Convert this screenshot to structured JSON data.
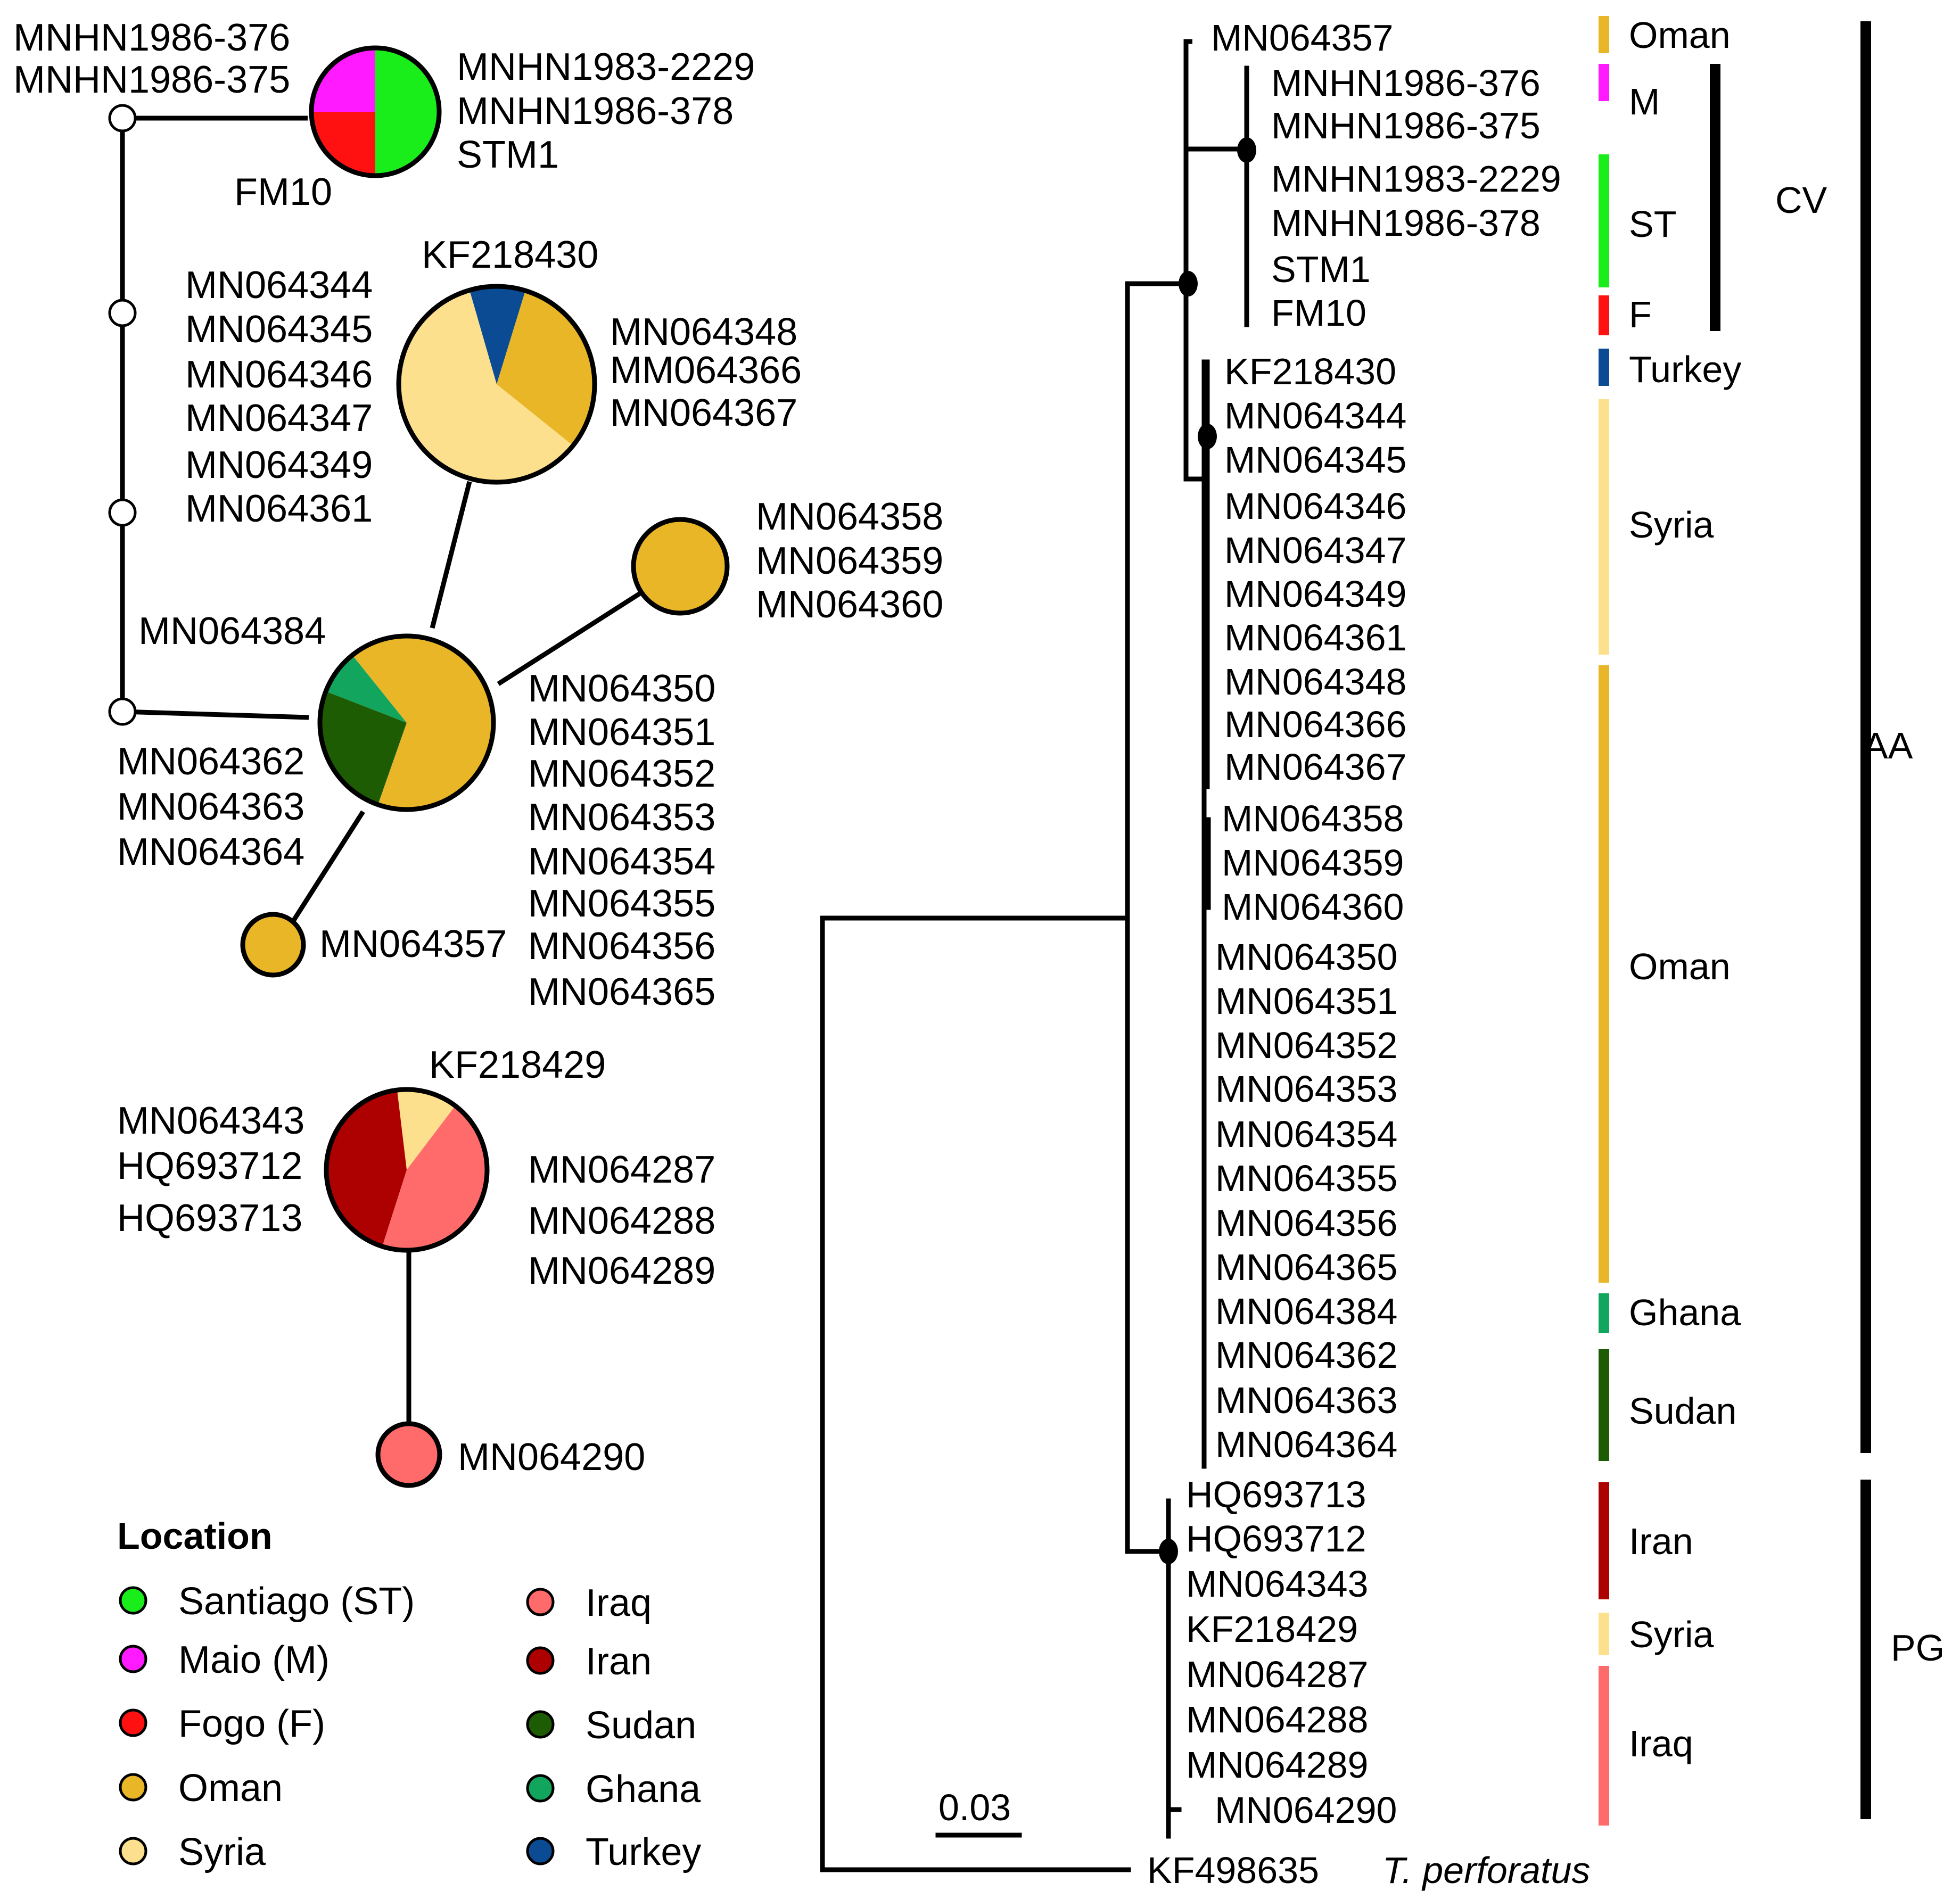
{
  "haplotype_network": {
    "legend_title": "Location",
    "legend": [
      {
        "label": "Santiago (ST)",
        "color": "#1aee1a"
      },
      {
        "label": "Maio (M)",
        "color": "#ff1aff"
      },
      {
        "label": "Fogo (F)",
        "color": "#ff1111"
      },
      {
        "label": "Oman",
        "color": "#e8b626"
      },
      {
        "label": "Syria",
        "color": "#fde08e"
      },
      {
        "label": "Iraq",
        "color": "#ff6b6b"
      },
      {
        "label": "Iran",
        "color": "#ad0000"
      },
      {
        "label": "Sudan",
        "color": "#1e5c04"
      },
      {
        "label": "Ghana",
        "color": "#11a55d"
      },
      {
        "label": "Turkey",
        "color": "#0b4b93"
      }
    ],
    "nodes": {
      "cv": {
        "labels_left": [
          "MNHN1986-376",
          "MNHN1986-375"
        ],
        "labels_right": [
          "MNHN1983-2229",
          "MNHN1986-378",
          "STM1"
        ],
        "label_bottom": "FM10"
      },
      "syria": {
        "label_top": "KF218430",
        "labels_left": [
          "MN064344",
          "MN064345",
          "MN064346",
          "MN064347",
          "MN064349",
          "MN064361"
        ],
        "labels_right": [
          "MN064348",
          "MM064366",
          "MN064367"
        ]
      },
      "oman_small": {
        "labels": [
          "MN064358",
          "MN064359",
          "MN064360"
        ]
      },
      "oman_main": {
        "label_top": "MN064384",
        "labels_left": [
          "MN064362",
          "MN064363",
          "MN064364"
        ],
        "labels_right": [
          "MN064350",
          "MN064351",
          "MN064352",
          "MN064353",
          "MN064354",
          "MN064355",
          "MN064356",
          "MN064365"
        ]
      },
      "oman_tiny": {
        "label": "MN064357"
      },
      "pg_main": {
        "label_top": "KF218429",
        "labels_left": [
          "MN064343",
          "HQ693712",
          "HQ693713"
        ],
        "labels_right": [
          "MN064287",
          "MN064288",
          "MN064289"
        ]
      },
      "iraq_small": {
        "label": "MN064290"
      }
    }
  },
  "phylogenetic_tree": {
    "scale_bar": "0.03",
    "outgroup": {
      "accession": "KF498635",
      "species": "T. perforatus"
    },
    "tips": [
      "MN064357",
      "MNHN1986-376",
      "MNHN1986-375",
      "MNHN1983-2229",
      "MNHN1986-378",
      "STM1",
      "FM10",
      "KF218430",
      "MN064344",
      "MN064345",
      "MN064346",
      "MN064347",
      "MN064349",
      "MN064361",
      "MN064348",
      "MN064366",
      "MN064367",
      "MN064358",
      "MN064359",
      "MN064360",
      "MN064350",
      "MN064351",
      "MN064352",
      "MN064353",
      "MN064354",
      "MN064355",
      "MN064356",
      "MN064365",
      "MN064384",
      "MN064362",
      "MN064363",
      "MN064364",
      "HQ693713",
      "HQ693712",
      "MN064343",
      "KF218429",
      "MN064287",
      "MN064288",
      "MN064289",
      "MN064290"
    ],
    "location_bars": [
      {
        "label": "Oman",
        "color": "#e8b626"
      },
      {
        "label": "M",
        "color": "#ff1aff"
      },
      {
        "label": "ST",
        "color": "#1aee1a"
      },
      {
        "label": "F",
        "color": "#ff1111"
      },
      {
        "label": "Turkey",
        "color": "#0b4b93"
      },
      {
        "label": "Syria",
        "color": "#fde08e"
      },
      {
        "label": "Oman",
        "color": "#e8b626"
      },
      {
        "label": "Ghana",
        "color": "#11a55d"
      },
      {
        "label": "Sudan",
        "color": "#1e5c04"
      },
      {
        "label": "Iran",
        "color": "#ad0000"
      },
      {
        "label": "Syria",
        "color": "#fde08e"
      },
      {
        "label": "Iraq",
        "color": "#ff6b6b"
      }
    ],
    "clades": [
      {
        "label": "CV"
      },
      {
        "label": "AA"
      },
      {
        "label": "PG"
      }
    ]
  }
}
